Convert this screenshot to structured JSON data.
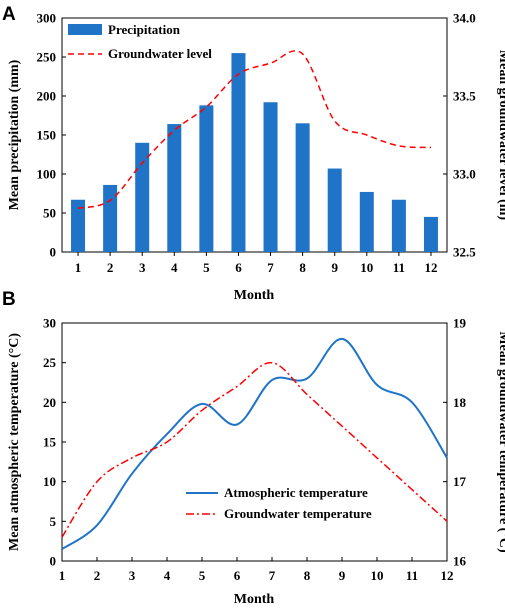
{
  "colors": {
    "bar": "#1f74c8",
    "line_a": "#ff0000",
    "line_b1": "#1f74c8",
    "line_b2": "#ff0000"
  },
  "chart_data": [
    {
      "panel_label": "A",
      "type": "bar",
      "categories": [
        "1",
        "2",
        "3",
        "4",
        "5",
        "6",
        "7",
        "8",
        "9",
        "10",
        "11",
        "12"
      ],
      "series": [
        {
          "name": "Precipitation",
          "type": "bar",
          "axis": "left",
          "values": [
            67,
            86,
            140,
            164,
            188,
            255,
            192,
            165,
            107,
            77,
            67,
            45
          ]
        },
        {
          "name": "Groundwater level",
          "type": "line",
          "style": "dashed",
          "axis": "right",
          "values": [
            32.78,
            32.83,
            33.07,
            33.28,
            33.43,
            33.64,
            33.71,
            33.77,
            33.34,
            33.25,
            33.18,
            33.17
          ]
        }
      ],
      "xlabel": "Month",
      "ylabel": "Mean precipitation (mm)",
      "y2label": "Mean groundwater level (m)",
      "ylim": [
        0,
        300
      ],
      "y2lim": [
        32.5,
        34.0
      ],
      "yticks": [
        "0",
        "50",
        "100",
        "150",
        "200",
        "250",
        "300"
      ],
      "y2ticks": [
        "32.5",
        "33.0",
        "33.5",
        "34.0"
      ],
      "legend": "top-left"
    },
    {
      "panel_label": "B",
      "type": "line",
      "x": [
        1,
        2,
        3,
        4,
        5,
        6,
        7,
        8,
        9,
        10,
        11,
        12
      ],
      "series": [
        {
          "name": "Atmospheric temperature",
          "style": "solid",
          "axis": "left",
          "values": [
            1.5,
            4.5,
            11,
            16,
            19.8,
            17.2,
            22.8,
            23,
            28,
            22.2,
            20,
            13
          ]
        },
        {
          "name": "Groundwater temperature",
          "style": "dashdot",
          "axis": "right",
          "values": [
            16.3,
            17.0,
            17.3,
            17.5,
            17.9,
            18.2,
            18.5,
            18.1,
            17.7,
            17.3,
            16.9,
            16.5
          ]
        }
      ],
      "xlabel": "Month",
      "ylabel": "Mean atmospheric temperature (°C)",
      "y2label": "Mean groundwater temperature (°C)",
      "xlim": [
        1,
        12
      ],
      "ylim": [
        0,
        30
      ],
      "y2lim": [
        16,
        19
      ],
      "xticks": [
        "1",
        "2",
        "3",
        "4",
        "5",
        "6",
        "7",
        "8",
        "9",
        "10",
        "11",
        "12"
      ],
      "yticks": [
        "0",
        "5",
        "10",
        "15",
        "20",
        "25",
        "30"
      ],
      "y2ticks": [
        "16",
        "17",
        "18",
        "19"
      ],
      "legend": "lower-center"
    }
  ]
}
